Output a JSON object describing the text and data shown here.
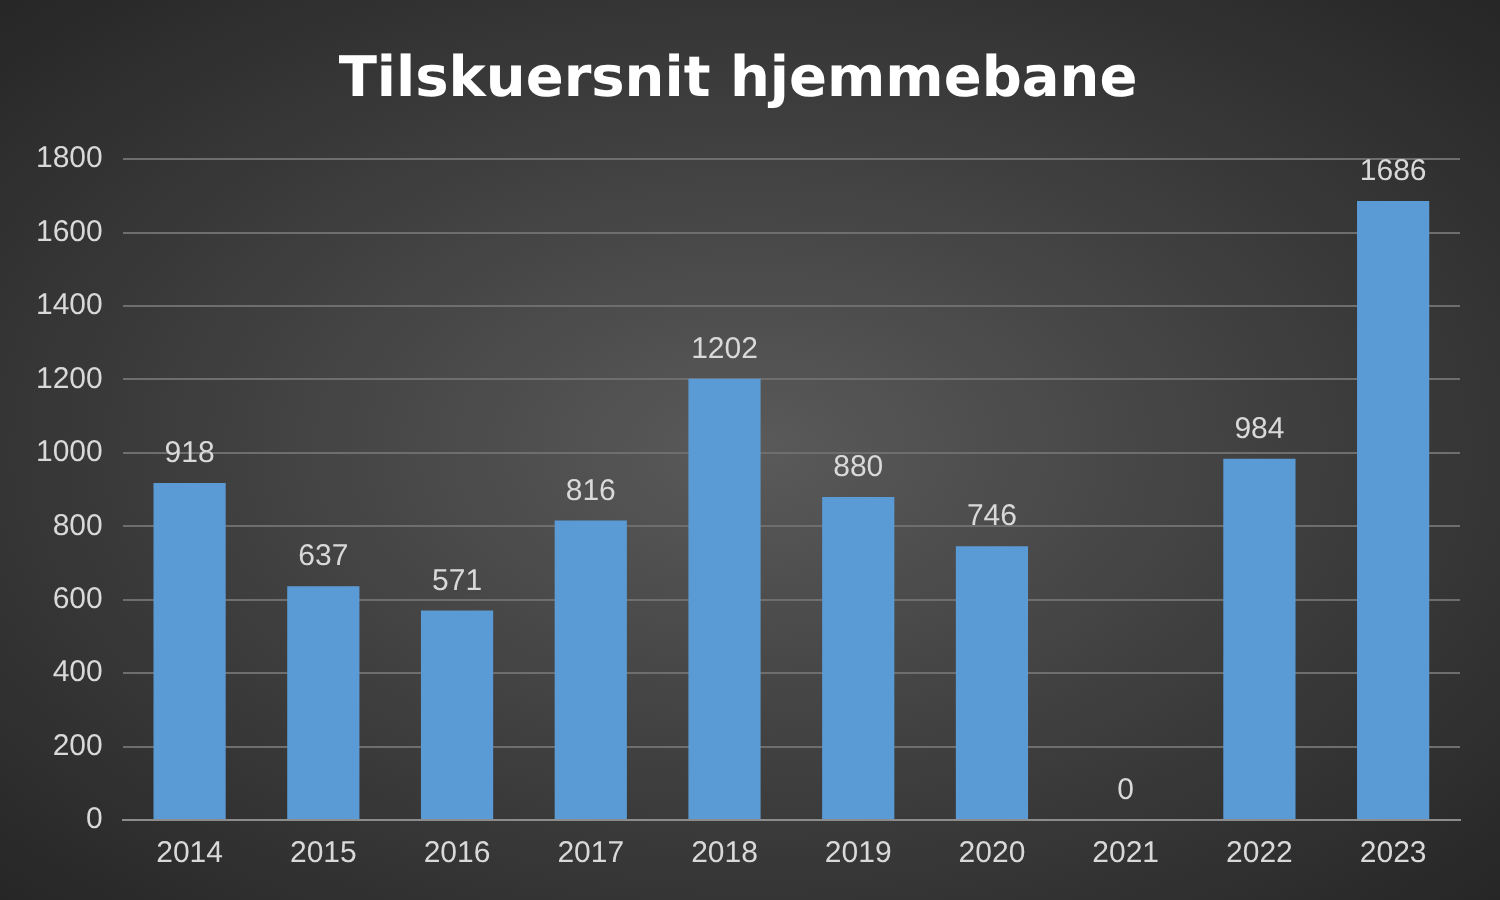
{
  "chart_data": {
    "type": "bar",
    "title": "Tilskuersnit hjemmebane",
    "categories": [
      "2014",
      "2015",
      "2016",
      "2017",
      "2018",
      "2019",
      "2020",
      "2021",
      "2022",
      "2023"
    ],
    "values": [
      918,
      637,
      571,
      816,
      1202,
      880,
      746,
      0,
      984,
      1686
    ],
    "color": "#5b9bd5",
    "ylim": [
      0,
      1800
    ],
    "yticks": [
      0,
      200,
      400,
      600,
      800,
      1000,
      1200,
      1400,
      1600,
      1800
    ],
    "grid": "y",
    "data_labels": true
  }
}
